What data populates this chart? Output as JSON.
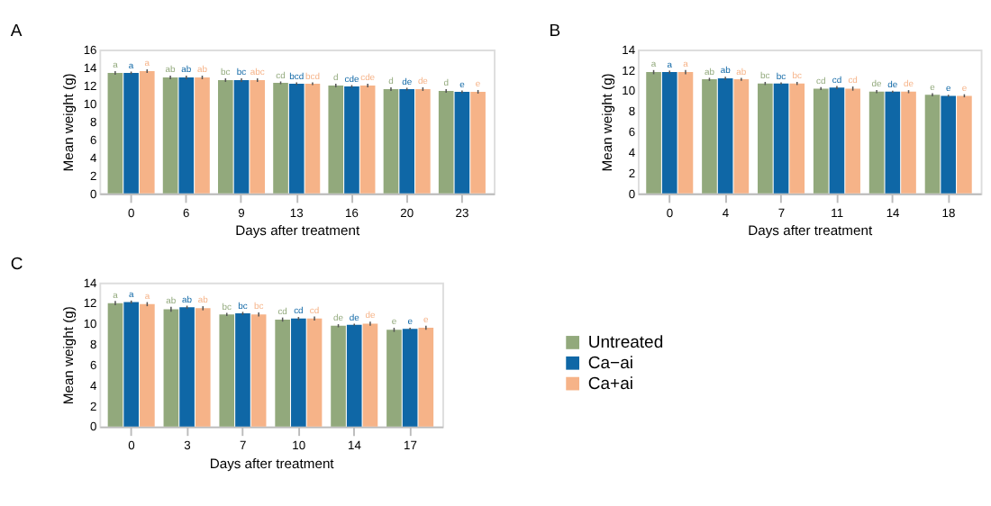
{
  "chart_data": [
    {
      "type": "bar",
      "title": "A",
      "xlabel": "Days after treatment",
      "ylabel": "Mean weight (g)",
      "categories": [
        "0",
        "6",
        "9",
        "13",
        "16",
        "20",
        "23"
      ],
      "ylim": [
        0,
        16
      ],
      "yticks": [
        0,
        2,
        4,
        6,
        8,
        10,
        12,
        14,
        16
      ],
      "grid": false,
      "legend": "right",
      "series": [
        {
          "name": "Untreated",
          "color": "#92a97c",
          "values": [
            13.4,
            12.9,
            12.6,
            12.3,
            12.0,
            11.6,
            11.4
          ],
          "errors": [
            0.2,
            0.2,
            0.2,
            0.15,
            0.2,
            0.2,
            0.2
          ],
          "value_labels": [
            "a",
            "ab",
            "bc",
            "cd",
            "d",
            "d",
            "d"
          ]
        },
        {
          "name": "Ca−ai",
          "color": "#0f67a6",
          "values": [
            13.4,
            12.9,
            12.6,
            12.2,
            11.9,
            11.6,
            11.3
          ],
          "errors": [
            0.15,
            0.2,
            0.2,
            0.15,
            0.15,
            0.15,
            0.15
          ],
          "value_labels": [
            "a",
            "ab",
            "bc",
            "bcd",
            "cde",
            "de",
            "e"
          ]
        },
        {
          "name": "Ca+ai",
          "color": "#f6b388",
          "values": [
            13.6,
            12.9,
            12.6,
            12.2,
            12.0,
            11.6,
            11.3
          ],
          "errors": [
            0.2,
            0.2,
            0.2,
            0.15,
            0.2,
            0.2,
            0.2
          ],
          "value_labels": [
            "a",
            "ab",
            "abc",
            "bcd",
            "cde",
            "de",
            "e"
          ]
        }
      ]
    },
    {
      "type": "bar",
      "title": "B",
      "xlabel": "Days after treatment",
      "ylabel": "Mean weight (g)",
      "categories": [
        "0",
        "4",
        "7",
        "11",
        "14",
        "18"
      ],
      "ylim": [
        0,
        14
      ],
      "yticks": [
        0,
        2,
        4,
        6,
        8,
        10,
        12,
        14
      ],
      "grid": false,
      "legend": "right",
      "series": [
        {
          "name": "Untreated",
          "color": "#92a97c",
          "values": [
            11.8,
            11.1,
            10.7,
            10.2,
            9.9,
            9.6
          ],
          "errors": [
            0.2,
            0.15,
            0.15,
            0.15,
            0.15,
            0.15
          ],
          "value_labels": [
            "a",
            "ab",
            "bc",
            "cd",
            "de",
            "e"
          ]
        },
        {
          "name": "Ca−ai",
          "color": "#0f67a6",
          "values": [
            11.8,
            11.2,
            10.7,
            10.3,
            9.9,
            9.5
          ],
          "errors": [
            0.15,
            0.15,
            0.1,
            0.15,
            0.1,
            0.1
          ],
          "value_labels": [
            "a",
            "ab",
            "bc",
            "cd",
            "de",
            "e"
          ]
        },
        {
          "name": "Ca+ai",
          "color": "#f6b388",
          "values": [
            11.8,
            11.1,
            10.7,
            10.2,
            9.9,
            9.5
          ],
          "errors": [
            0.2,
            0.15,
            0.15,
            0.2,
            0.15,
            0.15
          ],
          "value_labels": [
            "a",
            "ab",
            "bc",
            "cd",
            "de",
            "e"
          ]
        }
      ]
    },
    {
      "type": "bar",
      "title": "C",
      "xlabel": "Days after treatment",
      "ylabel": "Mean weight (g)",
      "categories": [
        "0",
        "3",
        "7",
        "10",
        "14",
        "17"
      ],
      "ylim": [
        0,
        14
      ],
      "yticks": [
        0,
        2,
        4,
        6,
        8,
        10,
        12,
        14
      ],
      "grid": false,
      "legend": "right",
      "series": [
        {
          "name": "Untreated",
          "color": "#92a97c",
          "values": [
            12.0,
            11.4,
            10.9,
            10.4,
            9.8,
            9.4
          ],
          "errors": [
            0.2,
            0.25,
            0.15,
            0.2,
            0.15,
            0.2
          ],
          "value_labels": [
            "a",
            "ab",
            "bc",
            "cd",
            "de",
            "e"
          ]
        },
        {
          "name": "Ca−ai",
          "color": "#0f67a6",
          "values": [
            12.1,
            11.6,
            11.0,
            10.5,
            9.9,
            9.5
          ],
          "errors": [
            0.15,
            0.15,
            0.15,
            0.15,
            0.1,
            0.1
          ],
          "value_labels": [
            "a",
            "ab",
            "bc",
            "cd",
            "de",
            "e"
          ]
        },
        {
          "name": "Ca+ai",
          "color": "#f6b388",
          "values": [
            11.9,
            11.5,
            10.9,
            10.5,
            10.0,
            9.6
          ],
          "errors": [
            0.2,
            0.2,
            0.2,
            0.2,
            0.2,
            0.2
          ],
          "value_labels": [
            "a",
            "ab",
            "bc",
            "cd",
            "de",
            "e"
          ]
        }
      ]
    }
  ]
}
